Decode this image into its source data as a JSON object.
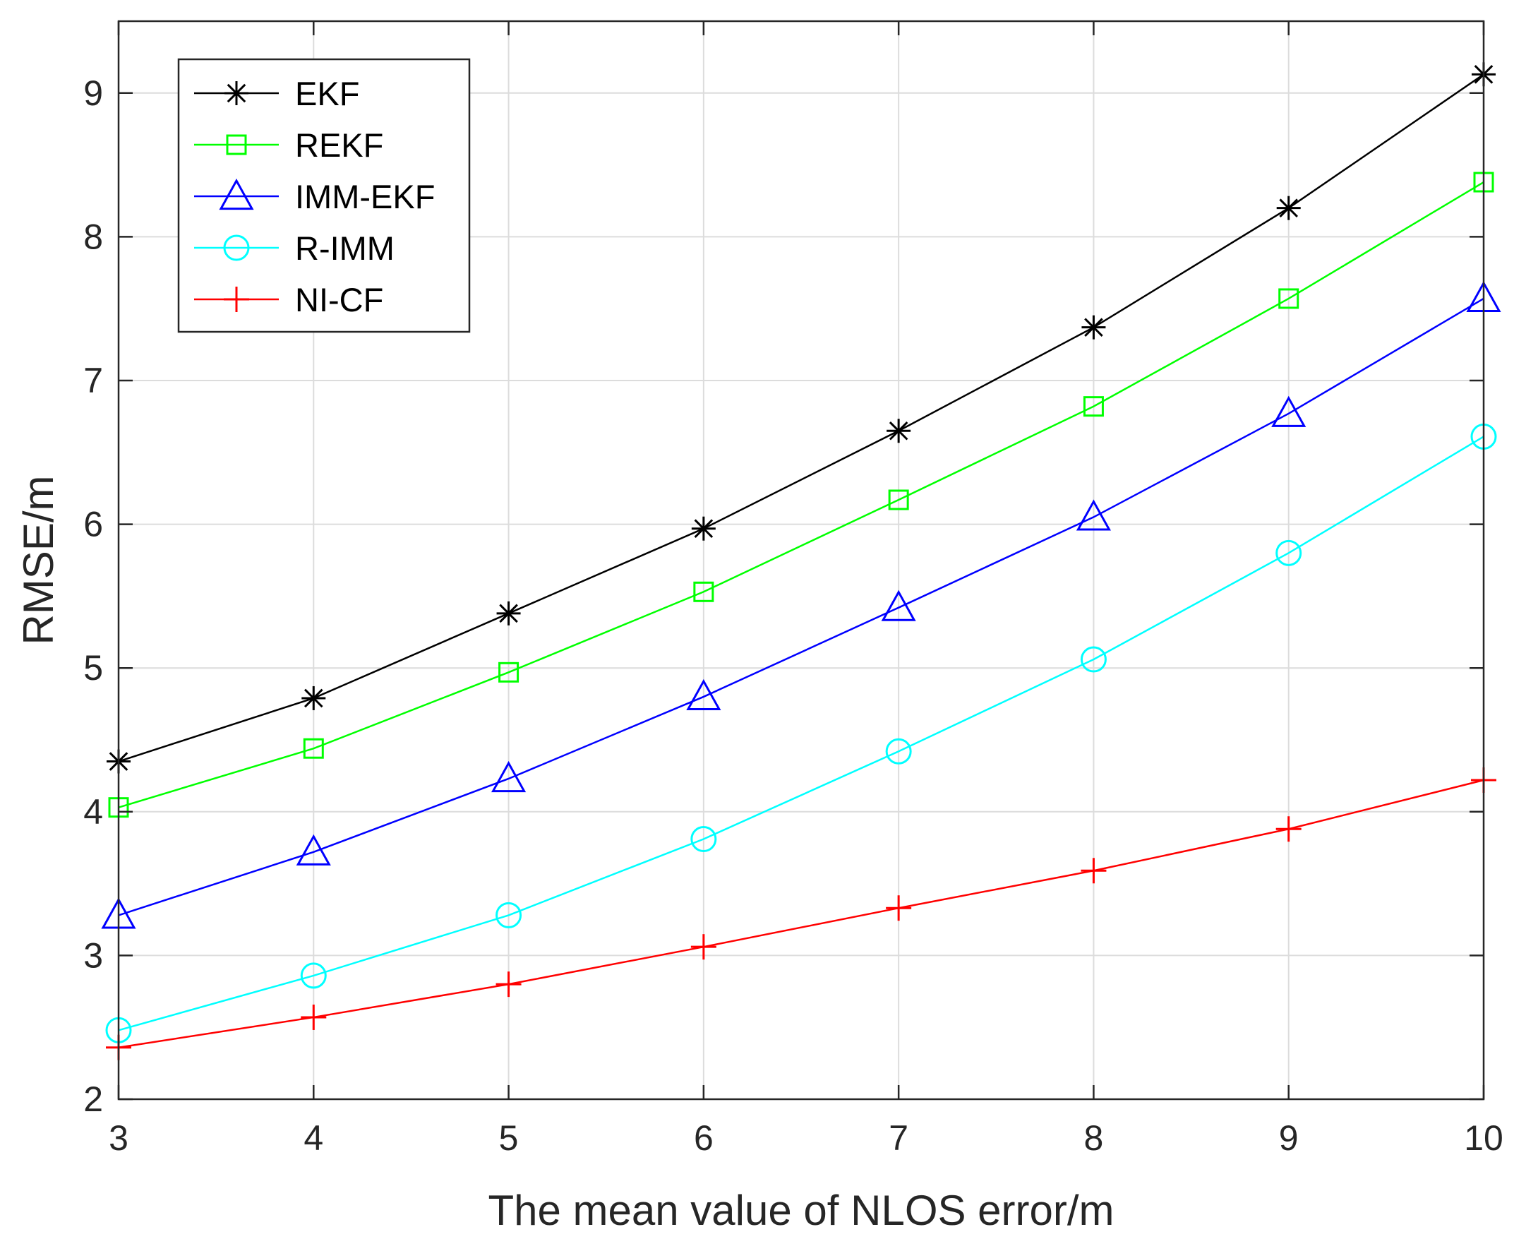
{
  "chart_data": {
    "type": "line",
    "title": "",
    "xlabel": "The mean value of NLOS error/m",
    "ylabel": "RMSE/m",
    "xlim": [
      3,
      10
    ],
    "ylim": [
      2,
      9.5
    ],
    "grid": true,
    "legend_position": "top-left",
    "x": [
      3,
      4,
      5,
      6,
      7,
      8,
      9,
      10
    ],
    "x_ticks": [
      "3",
      "4",
      "5",
      "6",
      "7",
      "8",
      "9",
      "10"
    ],
    "y_ticks": [
      "2",
      "3",
      "4",
      "5",
      "6",
      "7",
      "8",
      "9"
    ],
    "series": [
      {
        "name": "EKF",
        "color": "#000000",
        "marker": "asterisk",
        "values": [
          4.35,
          4.79,
          5.38,
          5.97,
          6.65,
          7.37,
          8.2,
          9.13
        ]
      },
      {
        "name": "REKF",
        "color": "#00ff00",
        "marker": "square",
        "values": [
          4.03,
          4.44,
          4.97,
          5.53,
          6.17,
          6.82,
          7.57,
          8.38
        ]
      },
      {
        "name": "IMM-EKF",
        "color": "#0000ff",
        "marker": "triangle",
        "values": [
          3.28,
          3.72,
          4.23,
          4.8,
          5.42,
          6.05,
          6.77,
          7.57
        ]
      },
      {
        "name": "R-IMM",
        "color": "#00ffff",
        "marker": "circle",
        "values": [
          2.48,
          2.86,
          3.28,
          3.81,
          4.42,
          5.06,
          5.8,
          6.61
        ]
      },
      {
        "name": "NI-CF",
        "color": "#ff0000",
        "marker": "plus",
        "values": [
          2.36,
          2.57,
          2.8,
          3.06,
          3.33,
          3.59,
          3.88,
          4.22
        ]
      }
    ]
  }
}
